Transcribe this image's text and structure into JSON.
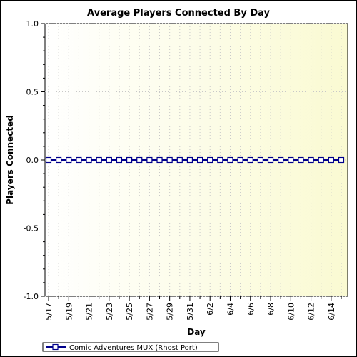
{
  "chart_data": {
    "type": "line",
    "title": "Average Players Connected By Day",
    "xlabel": "Day",
    "ylabel": "Players Connected",
    "ylim": [
      -1.0,
      1.0
    ],
    "yticks": [
      "1.0",
      "0.5",
      "0.0",
      "-0.5",
      "-1.0"
    ],
    "ytick_values": [
      1.0,
      0.5,
      0.0,
      -0.5,
      -1.0
    ],
    "x": [
      "5/17",
      "5/18",
      "5/19",
      "5/20",
      "5/21",
      "5/22",
      "5/23",
      "5/24",
      "5/25",
      "5/26",
      "5/27",
      "5/28",
      "5/29",
      "5/30",
      "5/31",
      "6/1",
      "6/2",
      "6/3",
      "6/4",
      "6/5",
      "6/6",
      "6/7",
      "6/8",
      "6/9",
      "6/10",
      "6/11",
      "6/12",
      "6/13",
      "6/14",
      "6/15"
    ],
    "xtick_labels": [
      "5/17",
      "5/19",
      "5/21",
      "5/23",
      "5/25",
      "5/27",
      "5/29",
      "5/31",
      "6/2",
      "6/4",
      "6/6",
      "6/8",
      "6/10",
      "6/12",
      "6/14"
    ],
    "series": [
      {
        "name": "Comic Adventures MUX (Rhost Port)",
        "values": [
          0,
          0,
          0,
          0,
          0,
          0,
          0,
          0,
          0,
          0,
          0,
          0,
          0,
          0,
          0,
          0,
          0,
          0,
          0,
          0,
          0,
          0,
          0,
          0,
          0,
          0,
          0,
          0,
          0,
          0
        ],
        "color": "#00008b"
      }
    ],
    "grid": true,
    "legend_position": "bottom-left",
    "plot_background": [
      "#ffffff",
      "#fafad2"
    ]
  }
}
